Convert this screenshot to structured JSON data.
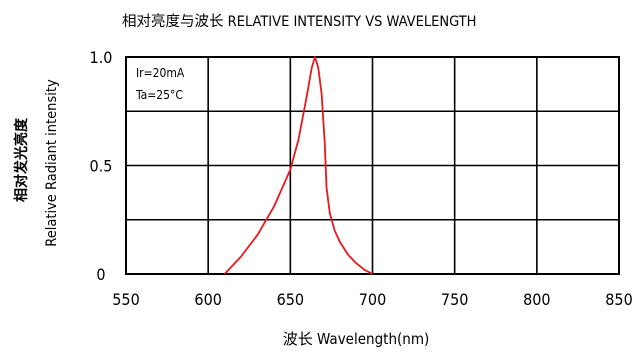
{
  "chart_data": {
    "type": "line",
    "title": "相对亮度与波长  RELATIVE INTENSITY VS WAVELENGTH",
    "xlabel": "波长  Wavelength(nm)",
    "ylabel_zh": "相对发光亮度",
    "ylabel_en": "Relative  Radiant  intensity",
    "xlim": [
      550,
      850
    ],
    "ylim": [
      0,
      1.0
    ],
    "x_ticks": [
      550,
      600,
      650,
      700,
      750,
      800,
      850
    ],
    "y_tick_labels": [
      {
        "value": 1.0,
        "label": "1.0"
      },
      {
        "value": 0.5,
        "label": "0.5"
      },
      {
        "value": 0,
        "label": "0"
      }
    ],
    "y_grid": [
      0.25,
      0.5,
      0.75,
      1.0
    ],
    "grid": true,
    "annotations": [
      "Ir=20mA",
      "Ta=25°C"
    ],
    "series": [
      {
        "color": "#e8191c",
        "x": [
          610,
          620,
          630,
          640,
          650,
          655,
          660,
          663,
          665,
          667,
          669,
          671,
          672,
          674,
          677,
          680,
          685,
          690,
          695,
          700
        ],
        "y": [
          0,
          0.08,
          0.18,
          0.31,
          0.48,
          0.62,
          0.82,
          0.95,
          1.0,
          0.95,
          0.83,
          0.6,
          0.4,
          0.28,
          0.2,
          0.15,
          0.09,
          0.05,
          0.02,
          0
        ]
      }
    ]
  }
}
